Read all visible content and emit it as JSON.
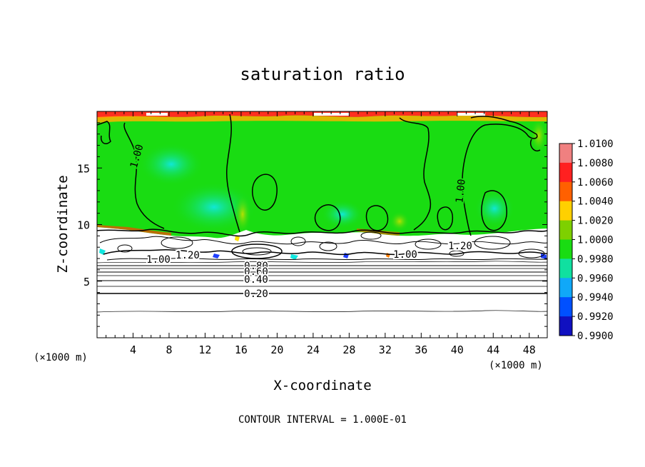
{
  "chart_data": {
    "type": "heatmap",
    "title": "saturation ratio",
    "xlabel": "X-coordinate",
    "ylabel": "Z-coordinate",
    "x_unit": "(×1000 m)",
    "y_unit": "(×1000 m)",
    "xlim": [
      0,
      50
    ],
    "ylim": [
      0,
      20
    ],
    "x_ticks": [
      "4",
      "8",
      "12",
      "16",
      "20",
      "24",
      "28",
      "32",
      "36",
      "40",
      "44",
      "48"
    ],
    "y_ticks": [
      "5",
      "10",
      "15"
    ],
    "colorbar": {
      "ticks": [
        "1.0100",
        "1.0080",
        "1.0060",
        "1.0040",
        "1.0020",
        "1.0000",
        "0.9980",
        "0.9960",
        "0.9940",
        "0.9920",
        "0.9900"
      ],
      "colors": [
        "#f08080",
        "#ff2020",
        "#ff6000",
        "#ffd000",
        "#7ed000",
        "#19dc12",
        "#10e0a0",
        "#10a8f8",
        "#0050ff",
        "#1010c0",
        "#6010b0"
      ]
    },
    "contour_labels": [
      "1.00",
      "1.00",
      "1.00",
      "1.20",
      "1.20",
      "1.00",
      "0.80",
      "0.60",
      "0.40",
      "0.20"
    ],
    "footnote": "CONTOUR INTERVAL = 1.000E-01"
  }
}
